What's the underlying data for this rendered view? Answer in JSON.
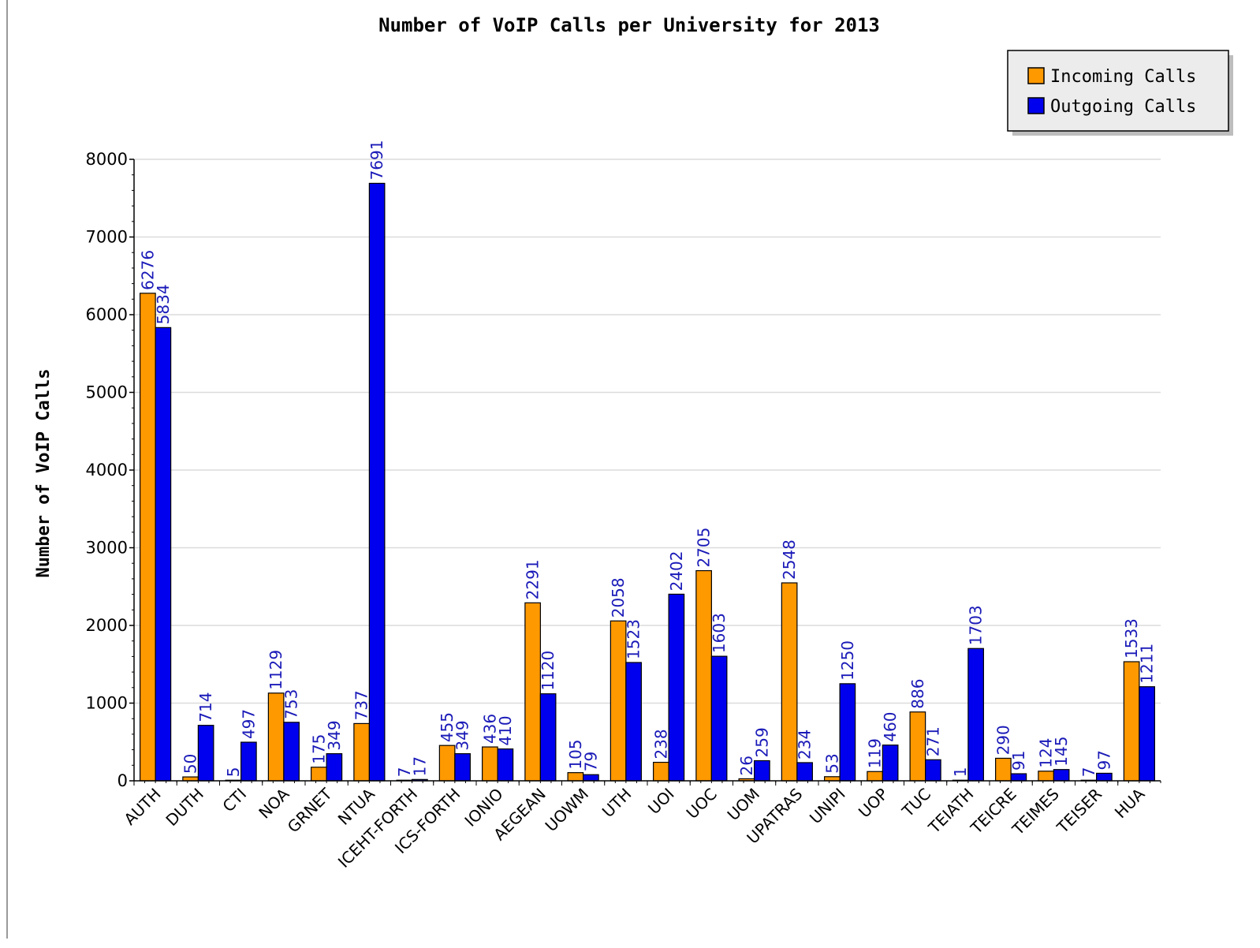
{
  "chart_data": {
    "type": "bar",
    "title": "Number of VoIP Calls per University for 2013",
    "xlabel": "",
    "ylabel": "Number of VoIP Calls",
    "ylim": [
      0,
      8000
    ],
    "yticks": [
      0,
      1000,
      2000,
      3000,
      4000,
      5000,
      6000,
      7000,
      8000
    ],
    "grid": true,
    "legend_position": "top-right",
    "categories": [
      "AUTH",
      "DUTH",
      "CTI",
      "NOA",
      "GRNET",
      "NTUA",
      "ICEHT-FORTH",
      "ICS-FORTH",
      "IONIO",
      "AEGEAN",
      "UOWM",
      "UTH",
      "UOI",
      "UOC",
      "UOM",
      "UPATRAS",
      "UNIPI",
      "UOP",
      "TUC",
      "TEIATH",
      "TEICRE",
      "TEIMES",
      "TEISER",
      "HUA"
    ],
    "series": [
      {
        "name": "Incoming Calls",
        "color": "#ff9900",
        "values": [
          6276,
          50,
          5,
          1129,
          175,
          737,
          7,
          455,
          436,
          2291,
          105,
          2058,
          238,
          2705,
          26,
          2548,
          53,
          119,
          886,
          1,
          290,
          124,
          7,
          1533
        ]
      },
      {
        "name": "Outgoing Calls",
        "color": "#0000ee",
        "values": [
          5834,
          714,
          497,
          753,
          349,
          7691,
          17,
          349,
          410,
          1120,
          79,
          1523,
          2402,
          1603,
          259,
          234,
          1250,
          460,
          271,
          1703,
          91,
          145,
          97,
          1211
        ]
      }
    ]
  }
}
